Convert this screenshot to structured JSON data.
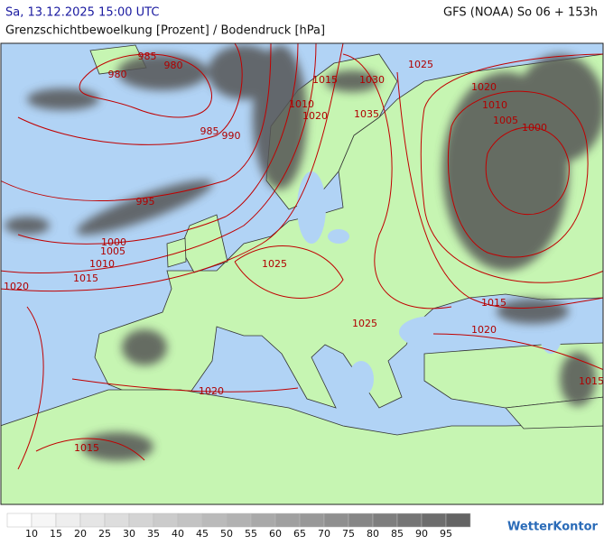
{
  "header": {
    "valid_time": "Sa, 13.12.2025 15:00 UTC",
    "model_run": "GFS (NOAA) So 06 + 153h",
    "subtitle": "Grenzschichtbewoelkung [Prozent] / Bodendruck [hPa]"
  },
  "map": {
    "isobar_labels": [
      "985",
      "980",
      "980",
      "1025",
      "1030",
      "1015",
      "1010",
      "1020",
      "1035",
      "1020",
      "1010",
      "1005",
      "1000",
      "985",
      "990",
      "995",
      "1000",
      "1005",
      "1010",
      "1015",
      "1020",
      "1025",
      "1025",
      "1015",
      "1020",
      "1020",
      "1015",
      "1015"
    ]
  },
  "legend": {
    "labels": [
      "10",
      "15",
      "20",
      "25",
      "30",
      "35",
      "40",
      "45",
      "50",
      "55",
      "60",
      "65",
      "70",
      "75",
      "80",
      "85",
      "90",
      "95"
    ]
  },
  "brand": "WetterKontor"
}
